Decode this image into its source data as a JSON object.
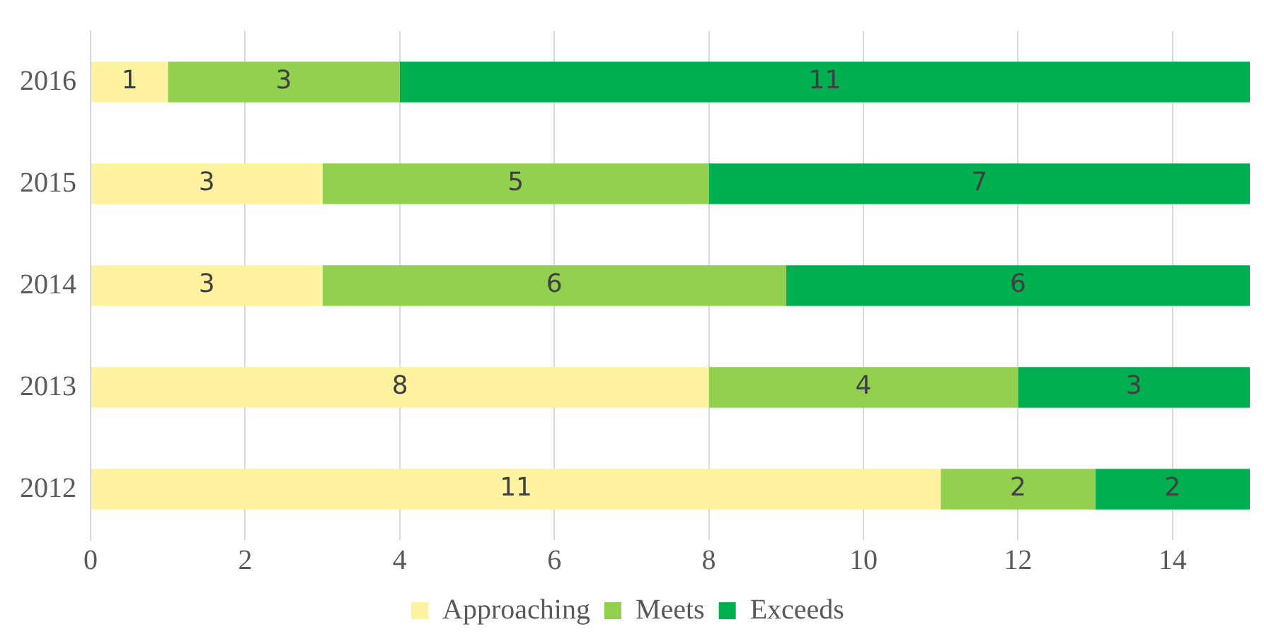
{
  "chart_data": {
    "type": "bar",
    "orientation": "horizontal",
    "stacked": true,
    "categories": [
      "2016",
      "2015",
      "2014",
      "2013",
      "2012"
    ],
    "series": [
      {
        "name": "Approaching",
        "color": "#fff2a0",
        "values": [
          1,
          3,
          3,
          8,
          11
        ]
      },
      {
        "name": "Meets",
        "color": "#92d050",
        "values": [
          3,
          5,
          6,
          4,
          2
        ]
      },
      {
        "name": "Exceeds",
        "color": "#00b050",
        "values": [
          11,
          7,
          6,
          3,
          2
        ]
      }
    ],
    "xlim": [
      0,
      15
    ],
    "xticks": [
      0,
      2,
      4,
      6,
      8,
      10,
      12,
      14
    ],
    "grid": "x",
    "legend": "bottom",
    "data_labels": true
  }
}
